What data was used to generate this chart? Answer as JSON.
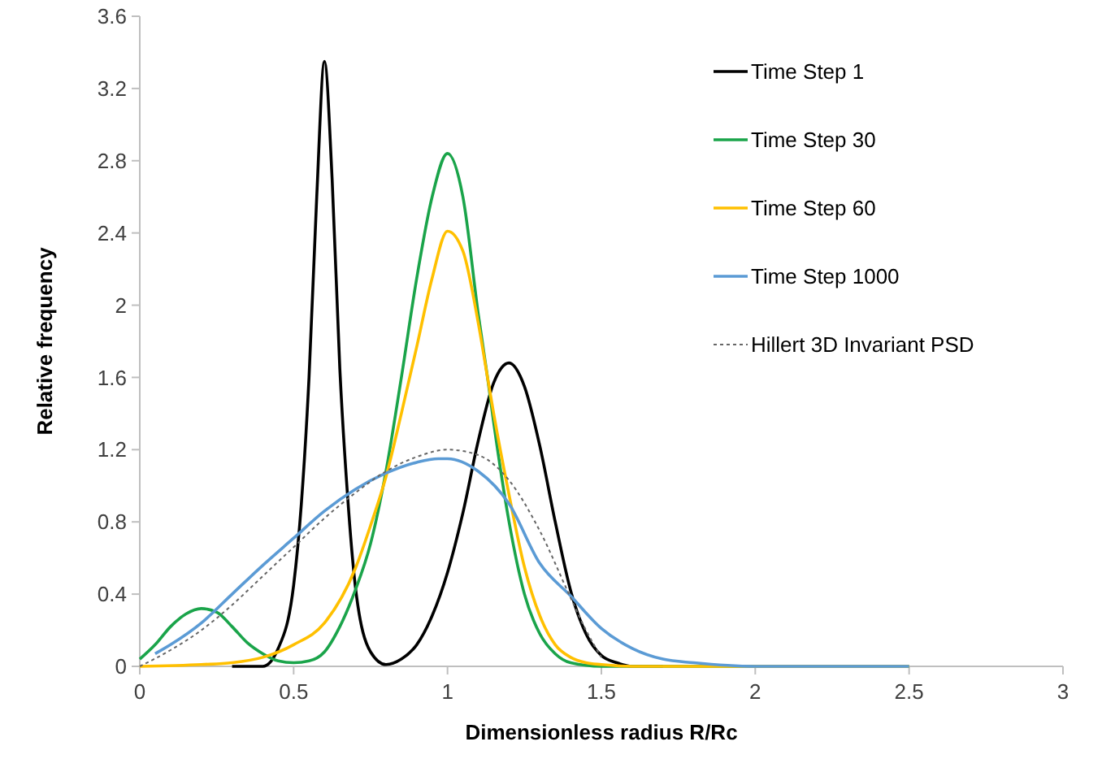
{
  "chart_data": {
    "type": "line",
    "xlabel": "Dimensionless radius R/Rc",
    "ylabel": "Relative frequency",
    "xlim": [
      0,
      3
    ],
    "xticks": [
      0,
      0.5,
      1,
      1.5,
      2,
      2.5,
      3
    ],
    "ylim": [
      0,
      3.6
    ],
    "yticks": [
      0,
      0.4,
      0.8,
      1.2,
      1.6,
      2,
      2.4,
      2.8,
      3.2,
      3.6
    ],
    "grid": false,
    "legend": "top right",
    "marker": "none",
    "series": [
      {
        "name": "Time Step 1",
        "color": "#000000",
        "line_style": "solid",
        "x": [
          0.3,
          0.4,
          0.45,
          0.5,
          0.525,
          0.55,
          0.575,
          0.6,
          0.625,
          0.65,
          0.675,
          0.7,
          0.75,
          0.8,
          0.85,
          0.9,
          0.95,
          1.0,
          1.05,
          1.1,
          1.15,
          1.2,
          1.25,
          1.3,
          1.35,
          1.4,
          1.45,
          1.5,
          1.55,
          1.6,
          1.7
        ],
        "values": [
          0,
          0,
          0.1,
          0.45,
          0.9,
          1.6,
          2.6,
          3.35,
          2.7,
          1.65,
          0.95,
          0.45,
          0.08,
          0.01,
          0.04,
          0.12,
          0.28,
          0.52,
          0.85,
          1.25,
          1.57,
          1.68,
          1.55,
          1.22,
          0.8,
          0.42,
          0.18,
          0.06,
          0.02,
          0,
          0
        ]
      },
      {
        "name": "Time Step 30",
        "color": "#1aa44a",
        "line_style": "solid",
        "x": [
          0,
          0.05,
          0.1,
          0.15,
          0.2,
          0.25,
          0.3,
          0.35,
          0.4,
          0.45,
          0.5,
          0.55,
          0.6,
          0.65,
          0.7,
          0.75,
          0.8,
          0.85,
          0.9,
          0.95,
          1.0,
          1.05,
          1.1,
          1.13,
          1.15,
          1.2,
          1.25,
          1.3,
          1.35,
          1.4,
          1.5,
          2.5
        ],
        "values": [
          0.04,
          0.12,
          0.22,
          0.29,
          0.32,
          0.3,
          0.22,
          0.13,
          0.07,
          0.03,
          0.02,
          0.03,
          0.08,
          0.22,
          0.42,
          0.68,
          1.08,
          1.6,
          2.15,
          2.6,
          2.84,
          2.6,
          1.95,
          1.6,
          1.35,
          0.8,
          0.4,
          0.18,
          0.07,
          0.02,
          0,
          0
        ]
      },
      {
        "name": "Time Step 60",
        "color": "#ffc000",
        "line_style": "solid",
        "x": [
          0,
          0.2,
          0.3,
          0.4,
          0.5,
          0.6,
          0.7,
          0.75,
          0.8,
          0.85,
          0.9,
          0.95,
          1.0,
          1.05,
          1.1,
          1.13,
          1.15,
          1.2,
          1.25,
          1.3,
          1.35,
          1.4,
          1.45,
          1.5,
          1.6,
          2.5
        ],
        "values": [
          0,
          0.01,
          0.02,
          0.05,
          0.12,
          0.24,
          0.54,
          0.78,
          1.05,
          1.4,
          1.77,
          2.15,
          2.41,
          2.3,
          1.9,
          1.6,
          1.4,
          0.95,
          0.55,
          0.28,
          0.12,
          0.05,
          0.02,
          0.01,
          0,
          0
        ]
      },
      {
        "name": "Time Step 1000",
        "color": "#5b9bd5",
        "line_style": "solid",
        "x": [
          0.05,
          0.1,
          0.2,
          0.3,
          0.4,
          0.5,
          0.6,
          0.7,
          0.8,
          0.9,
          0.97,
          1.0,
          1.1,
          1.2,
          1.3,
          1.4,
          1.5,
          1.6,
          1.7,
          1.8,
          2.0,
          2.5
        ],
        "values": [
          0.07,
          0.12,
          0.24,
          0.4,
          0.56,
          0.71,
          0.86,
          0.98,
          1.07,
          1.13,
          1.15,
          1.15,
          1.08,
          0.9,
          0.57,
          0.39,
          0.21,
          0.1,
          0.04,
          0.02,
          0,
          0
        ]
      },
      {
        "name": "Hillert 3D Invariant PSD",
        "color": "#666666",
        "line_style": "dotted",
        "x": [
          0,
          0.1,
          0.2,
          0.3,
          0.4,
          0.5,
          0.6,
          0.7,
          0.8,
          0.9,
          1.0,
          1.1,
          1.2,
          1.3,
          1.4,
          1.45,
          1.5
        ],
        "values": [
          0,
          0.09,
          0.2,
          0.34,
          0.5,
          0.66,
          0.82,
          0.96,
          1.08,
          1.16,
          1.2,
          1.17,
          1.03,
          0.75,
          0.38,
          0.2,
          0.05
        ]
      }
    ]
  }
}
